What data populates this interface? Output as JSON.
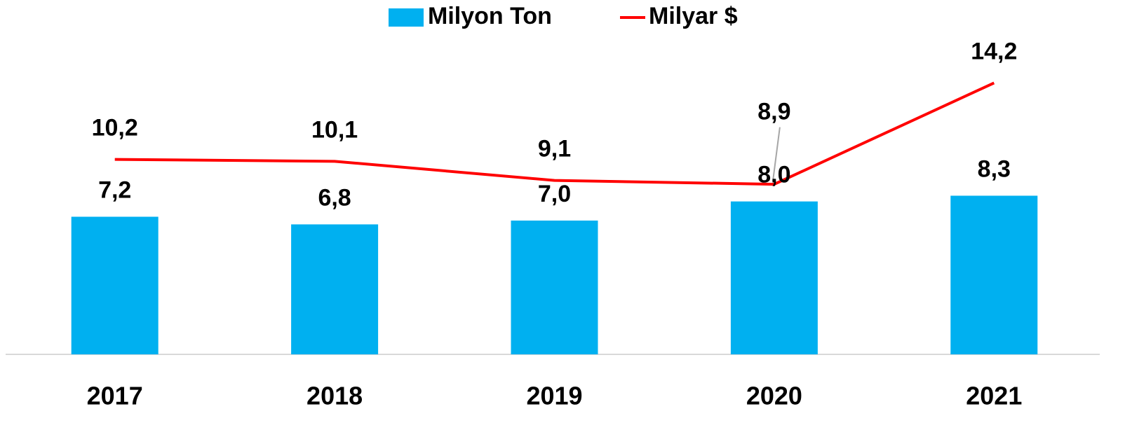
{
  "chart_data": {
    "type": "bar_line",
    "categories": [
      "2017",
      "2018",
      "2019",
      "2020",
      "2021"
    ],
    "series": [
      {
        "name": "Milyon Ton",
        "type": "bar",
        "color": "#00b0f0",
        "values": [
          7.2,
          6.8,
          7.0,
          8.0,
          8.3
        ],
        "value_labels": [
          "7,2",
          "6,8",
          "7,0",
          "8,0",
          "8,3"
        ]
      },
      {
        "name": "Milyar $",
        "type": "line",
        "color": "#ff0000",
        "values": [
          10.2,
          10.1,
          9.1,
          8.9,
          14.2
        ],
        "value_labels": [
          "10,2",
          "10,1",
          "9,1",
          "8,9",
          "14,2"
        ]
      }
    ],
    "ylim": [
      0,
      17
    ],
    "legend": "top"
  }
}
